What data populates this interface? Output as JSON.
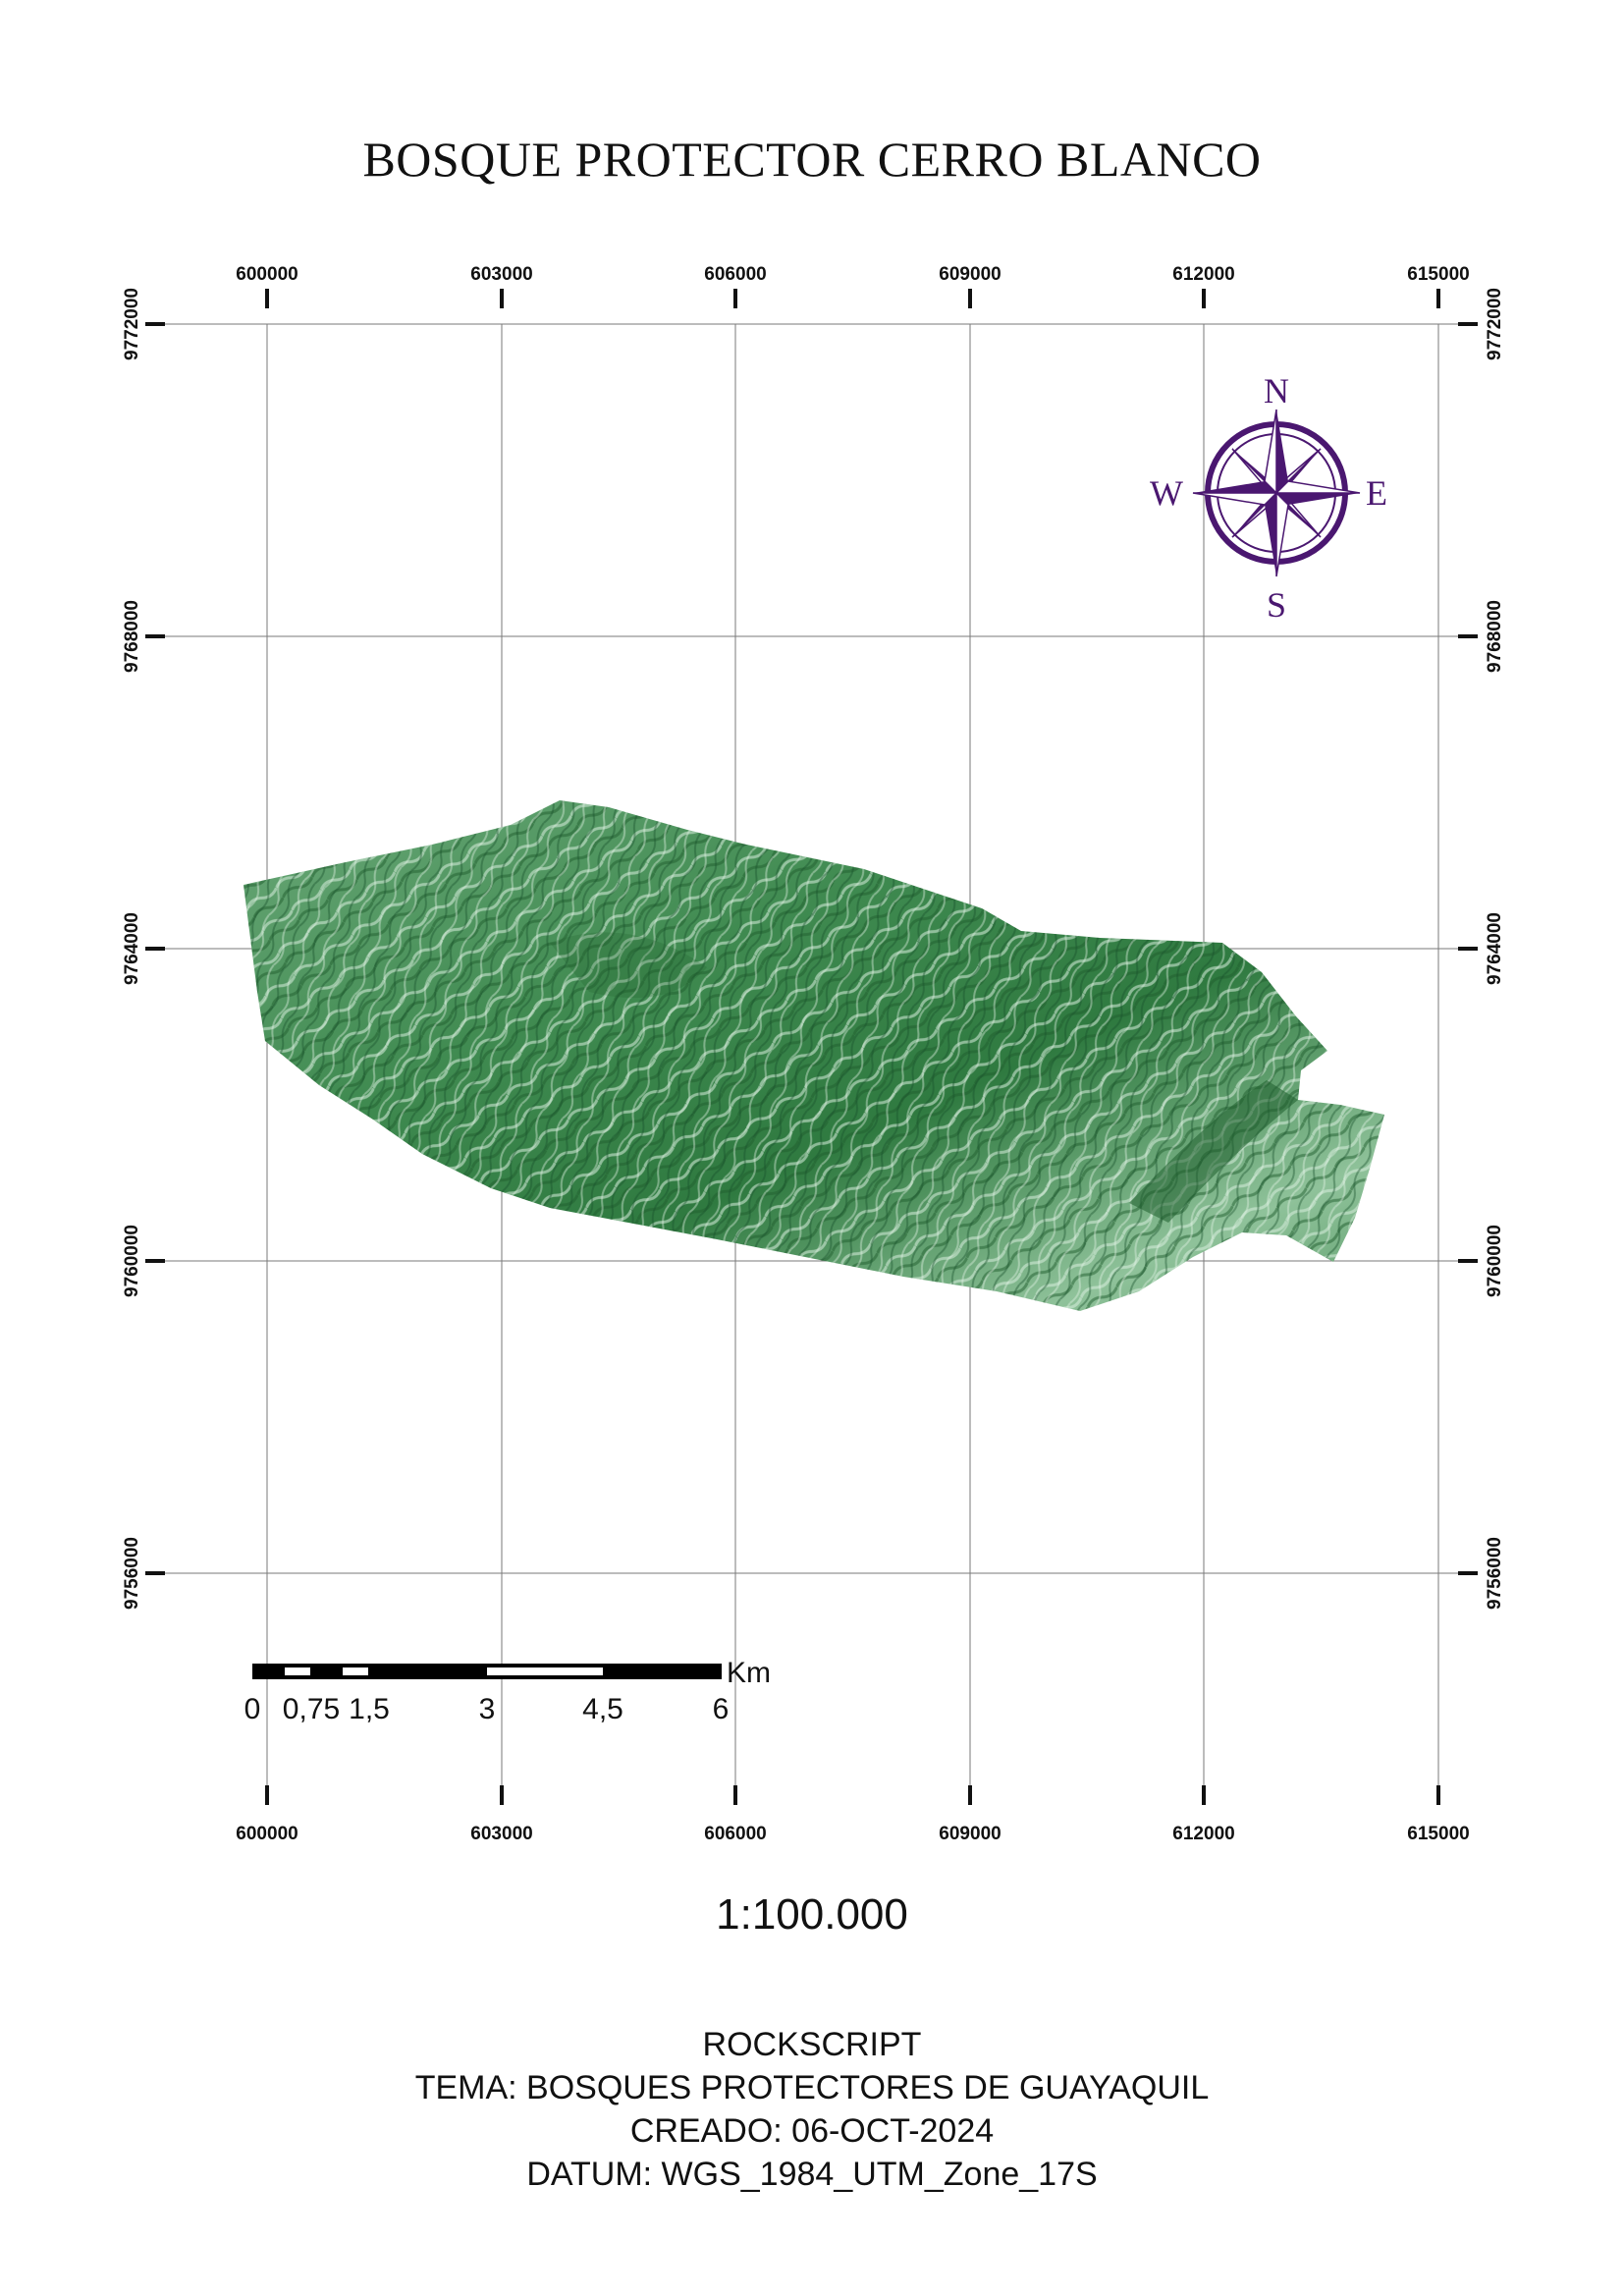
{
  "title": "BOSQUE PROTECTOR CERRO BLANCO",
  "grid": {
    "x_labels": [
      "600000",
      "603000",
      "606000",
      "609000",
      "612000",
      "615000"
    ],
    "y_labels": [
      "9772000",
      "9768000",
      "9764000",
      "9760000",
      "9756000"
    ]
  },
  "compass": {
    "n": "N",
    "s": "S",
    "e": "E",
    "w": "W"
  },
  "scale_bar": {
    "labels": [
      "0",
      "0,75",
      "1,5",
      "3",
      "4,5",
      "6"
    ],
    "unit": "Km"
  },
  "scale_text": "1:100.000",
  "footer": {
    "line1": "ROCKSCRIPT",
    "line2": "TEMA: BOSQUES PROTECTORES DE GUAYAQUIL",
    "line3": "CREADO: 06-OCT-2024",
    "line4": "DATUM: WGS_1984_UTM_Zone_17S"
  },
  "colors": {
    "forest": "#2e7a3e",
    "compass": "#4a1770"
  }
}
